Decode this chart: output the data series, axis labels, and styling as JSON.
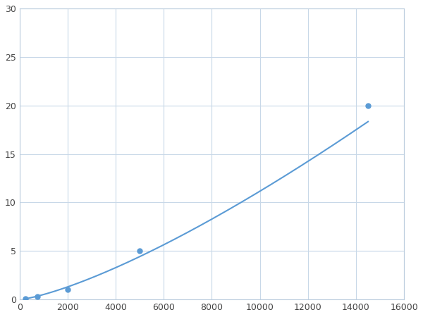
{
  "x": [
    250,
    750,
    2000,
    5000,
    14500
  ],
  "y": [
    0.1,
    0.3,
    1.0,
    5.0,
    20.0
  ],
  "line_color": "#5b9bd5",
  "marker_color": "#5b9bd5",
  "marker_size": 5,
  "line_width": 1.5,
  "xlim": [
    0,
    16000
  ],
  "ylim": [
    0,
    30
  ],
  "xticks": [
    0,
    2000,
    4000,
    6000,
    8000,
    10000,
    12000,
    14000,
    16000
  ],
  "yticks": [
    0,
    5,
    10,
    15,
    20,
    25,
    30
  ],
  "grid_color": "#c8d8e8",
  "background_color": "#ffffff",
  "figsize": [
    6.0,
    4.5
  ],
  "dpi": 100
}
